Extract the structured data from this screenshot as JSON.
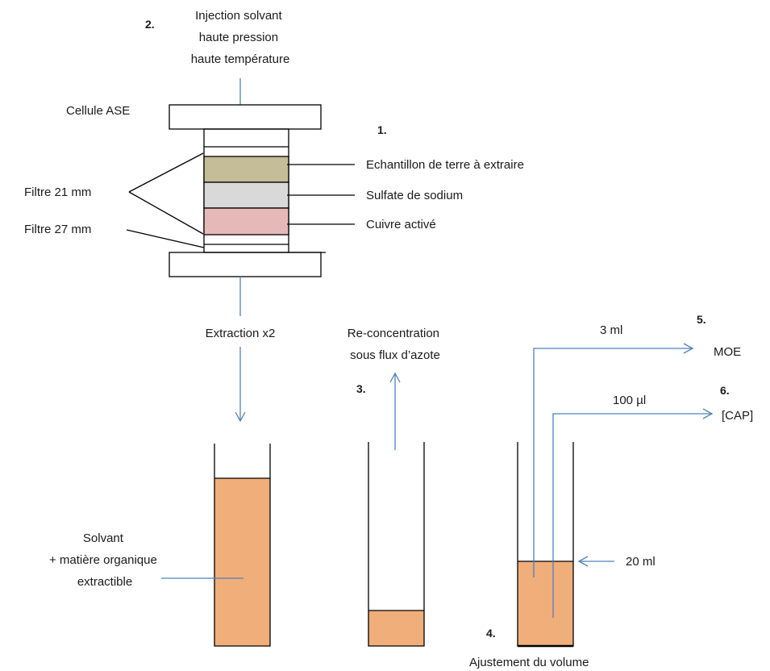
{
  "steps": {
    "s1": "1.",
    "s2": "2.",
    "s3": "3.",
    "s4": "4.",
    "s5": "5.",
    "s6": "6."
  },
  "labels": {
    "injection": [
      "Injection solvant",
      "haute pression",
      "haute température"
    ],
    "cell": "Cellule ASE",
    "sample": "Echantillon de terre à extraire",
    "sulfate": "Sulfate de sodium",
    "copper": "Cuivre activé",
    "filter21": "Filtre 21 mm",
    "filter27": "Filtre 27 mm",
    "extraction": "Extraction x2",
    "reconc": [
      "Re-concentration",
      "sous flux d’azote"
    ],
    "vol3": "3 ml",
    "moe": "MOE",
    "vol100": "100 µl",
    "cap": "[CAP]",
    "vol20": "20 ml",
    "adjust": "Ajustement du volume",
    "solvent": [
      "Solvant",
      "+ matière organique",
      "extractible"
    ]
  },
  "colors": {
    "sample": "#c4bd97",
    "sulfate": "#d9d9d9",
    "copper": "#e6b9b8",
    "liquid": "#f0ae7a",
    "arrow": "#4f81bd"
  }
}
